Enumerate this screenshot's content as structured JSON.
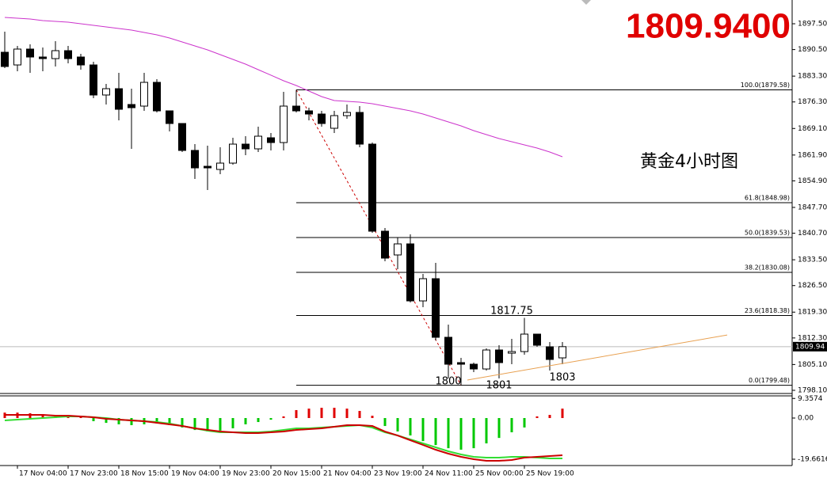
{
  "chart_data": [
    {
      "type": "candlestick",
      "price_label": "1809.9400",
      "caption": "黄金4小时图",
      "categories": [
        null,
        "17 Nov 04:00",
        null,
        null,
        null,
        "17 Nov 23:00",
        null,
        null,
        null,
        "18 Nov 15:00",
        null,
        null,
        null,
        "19 Nov 04:00",
        null,
        null,
        null,
        "19 Nov 23:00",
        null,
        null,
        null,
        "20 Nov 15:00",
        null,
        null,
        null,
        "21 Nov 04:00",
        null,
        null,
        null,
        "23 Nov 19:00",
        null,
        null,
        null,
        "24 Nov 11:00",
        null,
        null,
        null,
        "25 Nov 00:00",
        null,
        null,
        null,
        "25 Nov 19:00",
        null,
        null,
        null
      ],
      "open": [
        1889.77,
        1886.33,
        1890.63,
        1888.48,
        1888.05,
        1890.2,
        1888.48,
        1886.33,
        1878.18,
        1879.89,
        1875.6,
        1875.17,
        1881.61,
        1873.88,
        1870.45,
        1863.15,
        1858.85,
        1857.99,
        1859.71,
        1864.86,
        1863.58,
        1866.58,
        1865.29,
        1875.17,
        1873.88,
        1873.02,
        1869.16,
        1872.59,
        1873.45,
        1864.86,
        1841.25,
        1834.81,
        1837.81,
        1822.35,
        1828.37,
        1812.48,
        1805.61,
        1805.18,
        1803.89,
        1809.04,
        1808.18,
        1808.61,
        1813.34,
        1809.9,
        1806.9
      ],
      "high": [
        1895.35,
        1891.49,
        1891.92,
        1891.06,
        1892.78,
        1891.49,
        1889.34,
        1887.19,
        1881.18,
        1884.19,
        1879.89,
        1884.19,
        1882.47,
        1873.88,
        1870.45,
        1864.86,
        1864.44,
        1864.01,
        1866.58,
        1867.01,
        1869.59,
        1867.87,
        1879.03,
        1879.58,
        1874.74,
        1873.88,
        1873.88,
        1875.6,
        1875.17,
        1865.29,
        1842.11,
        1839.53,
        1840.39,
        1829.65,
        1832.66,
        1815.91,
        1806.9,
        1805.61,
        1809.47,
        1810.33,
        1812.05,
        1817.75,
        1813.34,
        1811.19,
        1811.19
      ],
      "low": [
        1885.48,
        1884.62,
        1884.19,
        1884.62,
        1885.91,
        1886.76,
        1885.05,
        1877.32,
        1875.6,
        1871.31,
        1863.58,
        1873.88,
        1873.45,
        1868.3,
        1862.72,
        1855.42,
        1852.41,
        1856.71,
        1859.28,
        1861.86,
        1862.72,
        1863.15,
        1863.15,
        1873.45,
        1871.31,
        1869.59,
        1867.87,
        1871.73,
        1864.01,
        1840.82,
        1833.09,
        1830.94,
        1821.92,
        1820.64,
        1811.62,
        1801.32,
        1799.48,
        1803.04,
        1803.46,
        1801.32,
        1805.18,
        1807.75,
        1809.9,
        1803.46,
        1805.18
      ],
      "close": [
        1885.91,
        1890.63,
        1888.48,
        1888.05,
        1890.2,
        1888.05,
        1886.33,
        1878.18,
        1879.89,
        1874.31,
        1874.74,
        1881.61,
        1873.88,
        1870.45,
        1863.15,
        1858.42,
        1858.42,
        1859.71,
        1864.86,
        1863.58,
        1867.01,
        1865.29,
        1875.17,
        1873.88,
        1873.02,
        1870.45,
        1872.59,
        1873.45,
        1864.86,
        1841.25,
        1833.95,
        1837.81,
        1822.35,
        1828.37,
        1812.48,
        1805.18,
        1805.18,
        1803.89,
        1809.04,
        1805.61,
        1808.61,
        1813.34,
        1810.33,
        1806.47,
        1809.94
      ],
      "up_color": "#ffffff",
      "down_color": "#000000",
      "ylim": [
        1797.24,
        1903.94
      ],
      "yticks": [
        {
          "value": 1897.5,
          "label": "1897.50"
        },
        {
          "value": 1890.5,
          "label": "1890.50"
        },
        {
          "value": 1883.3,
          "label": "1883.30"
        },
        {
          "value": 1876.3,
          "label": "1876.30"
        },
        {
          "value": 1869.1,
          "label": "1869.10"
        },
        {
          "value": 1861.9,
          "label": "1861.90"
        },
        {
          "value": 1854.9,
          "label": "1854.90"
        },
        {
          "value": 1847.7,
          "label": "1847.70"
        },
        {
          "value": 1840.7,
          "label": "1840.70"
        },
        {
          "value": 1833.5,
          "label": "1833.50"
        },
        {
          "value": 1826.5,
          "label": "1826.50"
        },
        {
          "value": 1819.3,
          "label": "1819.30"
        },
        {
          "value": 1812.3,
          "label": "1812.30"
        },
        {
          "value": 1805.1,
          "label": "1805.10"
        },
        {
          "value": 1798.1,
          "label": "1798.10"
        }
      ],
      "moving_average": {
        "color": "#cc33cc",
        "values": [
          1899.22,
          1899.0,
          1898.79,
          1898.36,
          1898.14,
          1897.93,
          1897.5,
          1897.07,
          1896.64,
          1896.21,
          1895.78,
          1895.14,
          1894.49,
          1893.63,
          1892.56,
          1891.49,
          1890.41,
          1889.13,
          1887.84,
          1886.55,
          1885.05,
          1883.55,
          1882.04,
          1880.75,
          1879.25,
          1877.75,
          1876.67,
          1876.46,
          1876.24,
          1875.81,
          1875.17,
          1874.53,
          1873.88,
          1873.02,
          1871.95,
          1870.88,
          1869.8,
          1868.52,
          1867.44,
          1866.37,
          1865.51,
          1864.65,
          1863.79,
          1862.72,
          1861.43
        ]
      },
      "fibonacci": {
        "color": "#000000",
        "line_color": "#cc0000",
        "levels": [
          {
            "value": 1879.58,
            "label": "100.0(1879.58)"
          },
          {
            "value": 1848.98,
            "label": "61.8(1848.98)"
          },
          {
            "value": 1839.53,
            "label": "50.0(1839.53)"
          },
          {
            "value": 1830.08,
            "label": "38.2(1830.08)"
          },
          {
            "value": 1818.38,
            "label": "23.6(1818.38)"
          },
          {
            "value": 1799.48,
            "label": "0.0(1799.48)"
          }
        ]
      },
      "trendline": {
        "color": "#e8a050",
        "x": [
          36.5,
          57
        ],
        "values": [
          1800.9,
          1813.1
        ]
      },
      "current_price": {
        "value": 1809.94,
        "label": "1809.94",
        "color": "#bbbbbb"
      },
      "annotations": [
        "1817.75",
        "1800",
        "1801",
        "1803"
      ]
    },
    {
      "type": "macd",
      "ylim": [
        -22.68,
        10.59
      ],
      "yticks": [
        9.3574,
        {
          "value": 0,
          "label": "0.00"
        },
        -19.6616
      ],
      "histogram": {
        "up_color": "#e00000",
        "down_color": "#00c800",
        "values": [
          2.6,
          2.6,
          2.3,
          1.9,
          1.5,
          1.1,
          0.8,
          -1.5,
          -2.3,
          -3.0,
          -3.4,
          -3.0,
          -2.6,
          -3.4,
          -4.5,
          -5.7,
          -6.4,
          -6.0,
          -4.9,
          -3.0,
          -1.9,
          -0.8,
          0.8,
          3.8,
          4.5,
          4.9,
          4.9,
          4.5,
          3.4,
          1.1,
          -3.8,
          -6.4,
          -8.3,
          -11.0,
          -12.9,
          -14.4,
          -15.1,
          -14.4,
          -12.1,
          -9.5,
          -6.8,
          -4.5,
          0.8,
          1.5,
          4.5
        ]
      },
      "series": [
        {
          "color": "#33dd33",
          "values": [
            -1.13,
            -0.76,
            -0.38,
            0,
            0.38,
            0.76,
            0.76,
            0.38,
            0,
            -0.76,
            -1.13,
            -1.51,
            -1.89,
            -2.65,
            -3.78,
            -4.91,
            -6.05,
            -6.81,
            -6.81,
            -6.81,
            -6.81,
            -6.43,
            -5.67,
            -4.91,
            -4.91,
            -4.54,
            -4.16,
            -3.78,
            -3.4,
            -4.54,
            -6.81,
            -8.32,
            -10.21,
            -12.1,
            -13.99,
            -15.88,
            -17.39,
            -18.53,
            -18.9,
            -18.9,
            -18.53,
            -18.53,
            -18.9,
            -19.28,
            -19.28
          ]
        },
        {
          "color": "#cc0000",
          "values": [
            1.51,
            1.51,
            1.51,
            1.51,
            1.13,
            1.13,
            0.76,
            0.38,
            -0.38,
            -0.76,
            -1.13,
            -1.51,
            -2.27,
            -3.02,
            -3.78,
            -4.91,
            -5.67,
            -6.43,
            -6.81,
            -7.18,
            -7.18,
            -6.81,
            -6.43,
            -5.67,
            -5.29,
            -4.91,
            -4.16,
            -3.4,
            -3.4,
            -3.78,
            -6.43,
            -8.32,
            -10.59,
            -12.85,
            -15.12,
            -17.01,
            -18.53,
            -19.66,
            -20.42,
            -20.42,
            -20.04,
            -18.9,
            -18.53,
            -18.15,
            -17.77
          ]
        }
      ]
    }
  ]
}
